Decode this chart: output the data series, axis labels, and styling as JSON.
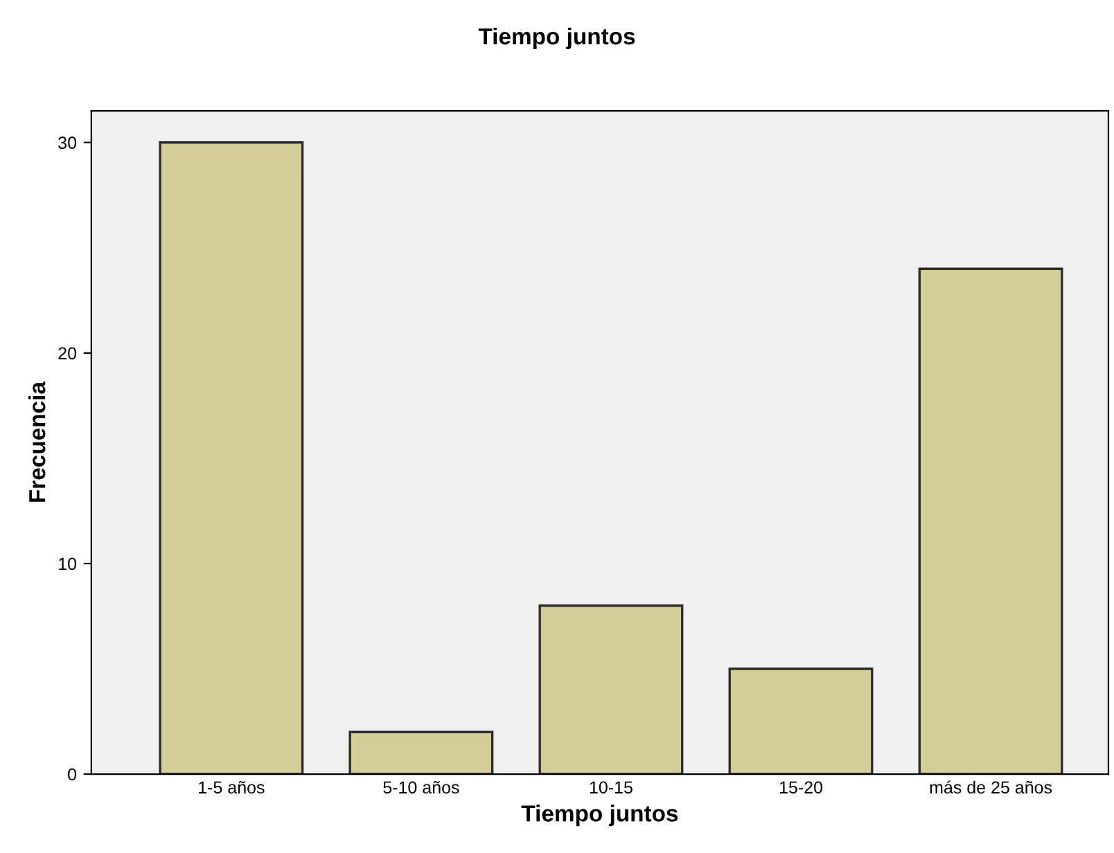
{
  "chart_data": {
    "type": "bar",
    "title": "Tiempo juntos",
    "xlabel": "Tiempo juntos",
    "ylabel": "Frecuencia",
    "categories": [
      "1-5 años",
      "5-10 años",
      "10-15",
      "15-20",
      "más de 25 años"
    ],
    "values": [
      30,
      2,
      8,
      5,
      24
    ],
    "color": "#d3ce97",
    "ylim": [
      0,
      31.5
    ],
    "yticks": [
      0,
      10,
      20,
      30
    ],
    "grid": false
  }
}
